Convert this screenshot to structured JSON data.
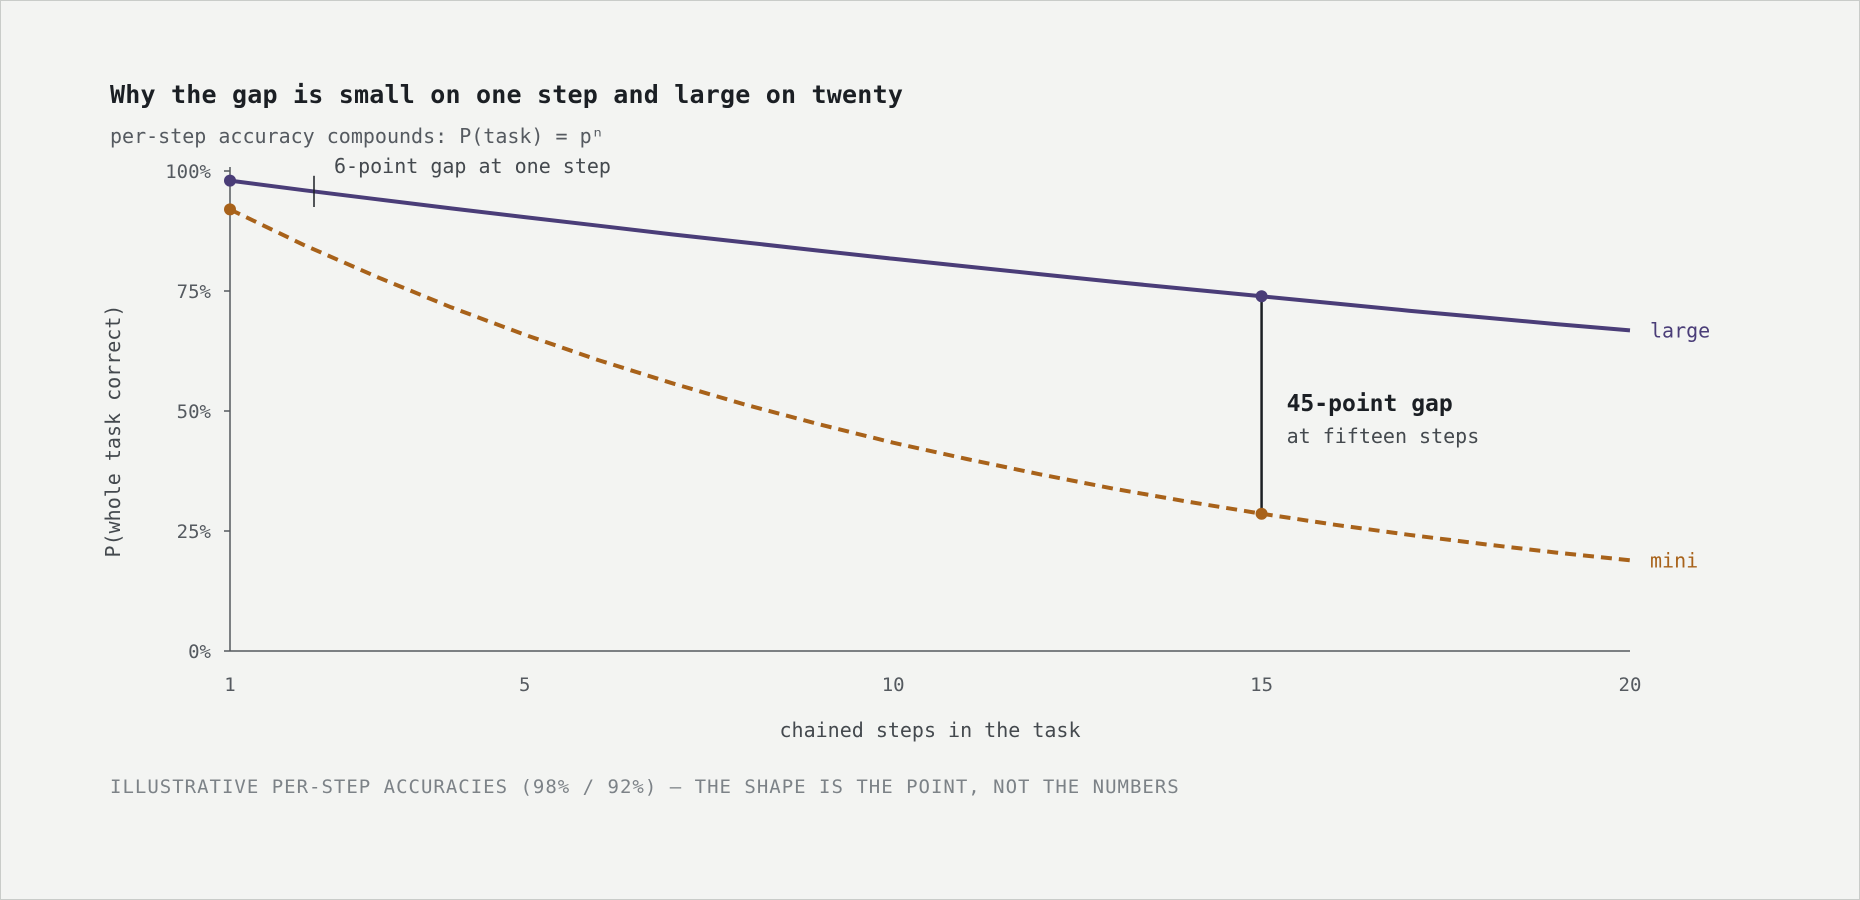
{
  "chart_data": {
    "type": "line",
    "title": "Why the gap is small on one step and large on twenty",
    "subtitle": "per-step accuracy compounds: P(task) = pⁿ",
    "xlabel": "chained steps in the task",
    "ylabel": "P(whole task correct)",
    "xlim": [
      1,
      20
    ],
    "ylim": [
      0,
      100
    ],
    "x_ticks": [
      1,
      5,
      10,
      15,
      20
    ],
    "y_ticks": [
      {
        "value": 0,
        "label": "0%"
      },
      {
        "value": 25,
        "label": "25%"
      },
      {
        "value": 50,
        "label": "50%"
      },
      {
        "value": 75,
        "label": "75%"
      },
      {
        "value": 100,
        "label": "100%"
      }
    ],
    "grid": false,
    "legend": "direct labels at line ends",
    "x": [
      1,
      2,
      3,
      4,
      5,
      6,
      7,
      8,
      9,
      10,
      11,
      12,
      13,
      14,
      15,
      16,
      17,
      18,
      19,
      20
    ],
    "series": [
      {
        "name": "large",
        "per_step_accuracy": 0.98,
        "style": "solid",
        "color": "#4a3d78",
        "values": [
          98.0,
          96.0,
          94.1,
          92.2,
          90.4,
          88.6,
          86.8,
          85.1,
          83.4,
          81.7,
          80.1,
          78.5,
          76.9,
          75.4,
          73.9,
          72.4,
          70.9,
          69.5,
          68.1,
          66.8
        ]
      },
      {
        "name": "mini",
        "per_step_accuracy": 0.92,
        "style": "dashed",
        "color": "#a8621a",
        "values": [
          92.0,
          84.6,
          77.9,
          71.6,
          65.9,
          60.6,
          55.8,
          51.3,
          47.2,
          43.4,
          40.0,
          36.8,
          33.8,
          31.1,
          28.6,
          26.3,
          24.2,
          22.3,
          20.5,
          18.9
        ]
      }
    ],
    "annotations": [
      {
        "at_step": 1,
        "text": "6-point gap at one step"
      },
      {
        "at_step": 15,
        "headline": "45-point gap",
        "detail": "at fifteen steps"
      }
    ],
    "footnote": "ILLUSTRATIVE PER-STEP ACCURACIES (98% / 92%) — THE SHAPE IS THE POINT, NOT THE NUMBERS"
  }
}
